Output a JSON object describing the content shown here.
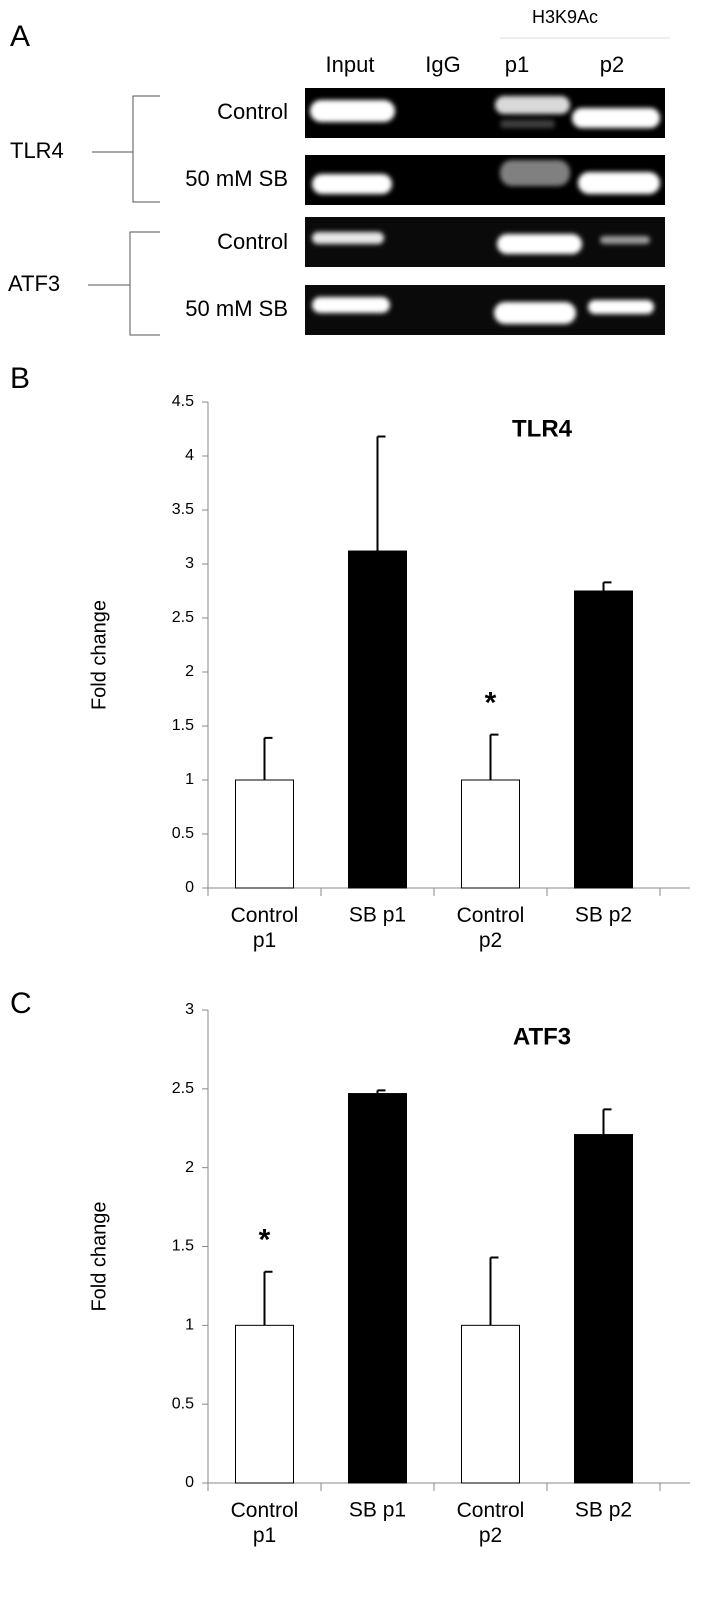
{
  "gel": {
    "letter": "A",
    "antibody": "H3K9Ac",
    "columns": [
      "Input",
      "IgG",
      "p1",
      "p2"
    ],
    "genes": [
      "TLR4",
      "ATF3"
    ],
    "rows": [
      "Control",
      "50 mM SB",
      "Control",
      "50 mM SB"
    ]
  },
  "chart_data": [
    {
      "type": "bar",
      "letter": "B",
      "title": "TLR4",
      "y_label": "Fold change",
      "categories": [
        "Control\np1",
        "SB p1",
        "Control\np2",
        "SB p2"
      ],
      "values": [
        1,
        3.12,
        1,
        2.75
      ],
      "errors": [
        0.39,
        1.06,
        0.42,
        0.08
      ],
      "colors": [
        "#ffffff",
        "#000000",
        "#ffffff",
        "#000000"
      ],
      "ylim": [
        0,
        4.5
      ],
      "yticks": [
        0,
        0.5,
        1,
        1.5,
        2,
        2.5,
        3,
        3.5,
        4,
        4.5
      ],
      "annotations": [
        {
          "text": "*",
          "category": "Control\np2"
        }
      ]
    },
    {
      "type": "bar",
      "letter": "C",
      "title": "ATF3",
      "y_label": "Fold change",
      "categories": [
        "Control\np1",
        "SB p1",
        "Control\np2",
        "SB p2"
      ],
      "values": [
        1,
        2.47,
        1,
        2.21
      ],
      "errors": [
        0.34,
        0.02,
        0.43,
        0.16
      ],
      "colors": [
        "#ffffff",
        "#000000",
        "#ffffff",
        "#000000"
      ],
      "ylim": [
        0,
        3
      ],
      "yticks": [
        0,
        0.5,
        1,
        1.5,
        2,
        2.5,
        3
      ],
      "annotations": [
        {
          "text": "*",
          "category": "Control\np1"
        }
      ]
    }
  ]
}
